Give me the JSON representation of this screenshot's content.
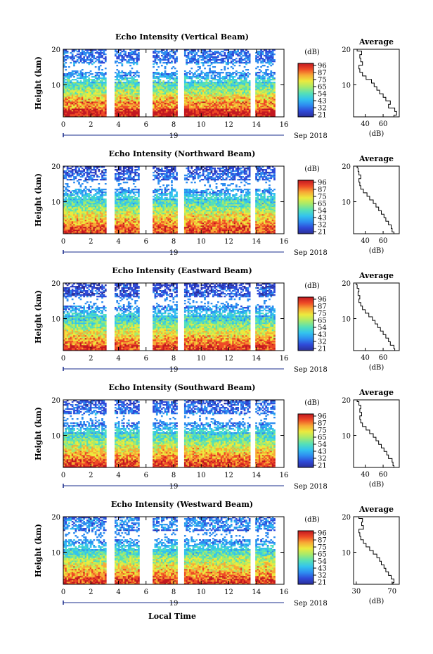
{
  "figure": {
    "date_label": "Sep 2018",
    "day_label": "19",
    "xlabel": "Local Time",
    "ylabel": "Height (km)",
    "cbar_unit": "(dB)",
    "avg_title": "Average",
    "avg_xlabel": "(dB)",
    "x_ticks": [
      "0",
      "2",
      "4",
      "6",
      "8",
      "10",
      "12",
      "14",
      "16"
    ],
    "y_ticks": [
      "20",
      "10"
    ],
    "cbar_ticks": [
      "96",
      "87",
      "75",
      "65",
      "54",
      "43",
      "32",
      "21"
    ]
  },
  "chart_data": [
    {
      "type": "heatmap",
      "title": "Echo Intensity (Vertical Beam)",
      "xlabel": "",
      "ylabel": "Height (km)",
      "xlim": [
        0,
        16
      ],
      "ylim": [
        1,
        20
      ],
      "colorbar": {
        "label": "(dB)",
        "range": [
          21,
          96
        ],
        "ticks": [
          96,
          87,
          75,
          65,
          54,
          43,
          32,
          21
        ]
      },
      "data_gaps_hours": [
        [
          3.2,
          3.7
        ],
        [
          5.6,
          6.4
        ],
        [
          8.4,
          8.7
        ],
        [
          13.6,
          13.9
        ]
      ],
      "average_profile": {
        "title": "Average",
        "xlabel": "(dB)",
        "x_ticks": [
          "40",
          "60"
        ],
        "xlim": [
          27,
          78
        ],
        "height_km": [
          1,
          2,
          3,
          4,
          5,
          6,
          7,
          8,
          9,
          10,
          11,
          12,
          13,
          14,
          15,
          16,
          17,
          18,
          19,
          20
        ],
        "db": [
          72,
          75,
          73,
          66,
          68,
          63,
          60,
          56,
          53,
          50,
          47,
          41,
          37,
          34,
          33,
          37,
          35,
          34,
          36,
          31
        ]
      }
    },
    {
      "type": "heatmap",
      "title": "Echo Intensity (Northward Beam)",
      "xlabel": "",
      "ylabel": "Height (km)",
      "xlim": [
        0,
        16
      ],
      "ylim": [
        1,
        20
      ],
      "colorbar": {
        "label": "(dB)",
        "range": [
          21,
          96
        ],
        "ticks": [
          96,
          87,
          75,
          65,
          54,
          43,
          32,
          21
        ]
      },
      "data_gaps_hours": [
        [
          3.2,
          3.7
        ],
        [
          5.6,
          6.4
        ],
        [
          8.4,
          8.7
        ],
        [
          13.6,
          13.9
        ]
      ],
      "average_profile": {
        "title": "Average",
        "xlabel": "(dB)",
        "x_ticks": [
          "40",
          "60"
        ],
        "xlim": [
          27,
          78
        ],
        "height_km": [
          1,
          2,
          3,
          4,
          5,
          6,
          7,
          8,
          9,
          10,
          11,
          12,
          13,
          14,
          15,
          16,
          17,
          18,
          19,
          20
        ],
        "db": [
          72,
          70,
          69,
          66,
          63,
          61,
          58,
          55,
          52,
          49,
          45,
          42,
          38,
          35,
          34,
          33,
          35,
          33,
          32,
          31
        ]
      }
    },
    {
      "type": "heatmap",
      "title": "Echo Intensity (Eastward Beam)",
      "xlabel": "",
      "ylabel": "Height (km)",
      "xlim": [
        0,
        16
      ],
      "ylim": [
        1,
        20
      ],
      "colorbar": {
        "label": "(dB)",
        "range": [
          21,
          96
        ],
        "ticks": [
          96,
          87,
          75,
          65,
          54,
          43,
          32,
          21
        ]
      },
      "data_gaps_hours": [
        [
          3.2,
          3.7
        ],
        [
          5.6,
          6.4
        ],
        [
          8.4,
          8.7
        ],
        [
          13.6,
          13.9
        ]
      ],
      "average_profile": {
        "title": "Average",
        "xlabel": "(dB)",
        "x_ticks": [
          "40",
          "60"
        ],
        "xlim": [
          27,
          78
        ],
        "height_km": [
          1,
          2,
          3,
          4,
          5,
          6,
          7,
          8,
          9,
          10,
          11,
          12,
          13,
          14,
          15,
          16,
          17,
          18,
          19,
          20
        ],
        "db": [
          73,
          72,
          68,
          66,
          63,
          60,
          57,
          54,
          51,
          48,
          44,
          40,
          37,
          35,
          33,
          34,
          32,
          33,
          31,
          30
        ]
      }
    },
    {
      "type": "heatmap",
      "title": "Echo Intensity (Southward Beam)",
      "xlabel": "",
      "ylabel": "Height (km)",
      "xlim": [
        0,
        16
      ],
      "ylim": [
        1,
        20
      ],
      "colorbar": {
        "label": "(dB)",
        "range": [
          21,
          96
        ],
        "ticks": [
          96,
          87,
          75,
          65,
          54,
          43,
          32,
          21
        ]
      },
      "data_gaps_hours": [
        [
          3.2,
          3.7
        ],
        [
          5.6,
          6.4
        ],
        [
          8.4,
          8.7
        ],
        [
          13.6,
          13.9
        ]
      ],
      "average_profile": {
        "title": "Average",
        "xlabel": "(dB)",
        "x_ticks": [
          "40",
          "60"
        ],
        "xlim": [
          27,
          78
        ],
        "height_km": [
          1,
          2,
          3,
          4,
          5,
          6,
          7,
          8,
          9,
          10,
          11,
          12,
          13,
          14,
          15,
          16,
          17,
          18,
          19,
          20
        ],
        "db": [
          72,
          71,
          70,
          66,
          64,
          61,
          58,
          55,
          52,
          49,
          45,
          41,
          37,
          35,
          34,
          36,
          34,
          35,
          33,
          31
        ]
      }
    },
    {
      "type": "heatmap",
      "title": "Echo Intensity (Westward Beam)",
      "xlabel": "Local Time",
      "ylabel": "Height (km)",
      "xlim": [
        0,
        16
      ],
      "ylim": [
        1,
        20
      ],
      "colorbar": {
        "label": "(dB)",
        "range": [
          21,
          96
        ],
        "ticks": [
          96,
          87,
          75,
          65,
          54,
          43,
          32,
          21
        ]
      },
      "data_gaps_hours": [
        [
          3.2,
          3.7
        ],
        [
          5.6,
          6.4
        ],
        [
          8.4,
          8.7
        ],
        [
          13.6,
          13.9
        ]
      ],
      "average_profile": {
        "title": "Average",
        "xlabel": "(dB)",
        "x_ticks": [
          "30",
          "70"
        ],
        "xlim": [
          27,
          78
        ],
        "height_km": [
          1,
          2,
          3,
          4,
          5,
          6,
          7,
          8,
          9,
          10,
          11,
          12,
          13,
          14,
          15,
          16,
          17,
          18,
          19,
          20
        ],
        "db": [
          71,
          72,
          69,
          66,
          63,
          61,
          58,
          56,
          53,
          49,
          45,
          41,
          38,
          35,
          34,
          33,
          38,
          36,
          37,
          33
        ]
      }
    }
  ],
  "colors": {
    "scale": [
      "#2b2f99",
      "#2f4ad8",
      "#2e8df0",
      "#33c3ee",
      "#55e0b8",
      "#a8ea6a",
      "#ecea3e",
      "#f7a935",
      "#ee4a26",
      "#c21820"
    ],
    "axis": "#000000",
    "date_axis": "#1a2c8c"
  }
}
